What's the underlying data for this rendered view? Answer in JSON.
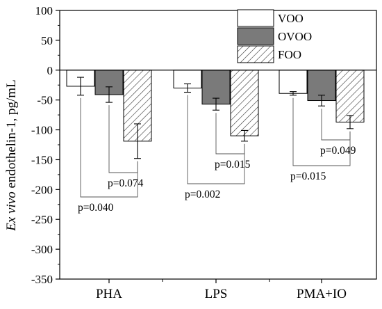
{
  "chart_data": {
    "type": "bar",
    "ylabel_prefix": "Ex vivo",
    "ylabel_rest": " endothelin-1, pg/mL",
    "ylim": [
      -350,
      100
    ],
    "yticks": [
      100,
      50,
      0,
      -50,
      -100,
      -150,
      -200,
      -250,
      -300,
      -350
    ],
    "categories": [
      "PHA",
      "LPS",
      "PMA+IO"
    ],
    "series": [
      {
        "name": "VOO",
        "values": [
          -27,
          -30,
          -39
        ],
        "errors": [
          15,
          7,
          3
        ],
        "fill": "#ffffff"
      },
      {
        "name": "OVOO",
        "values": [
          -41,
          -57,
          -51
        ],
        "errors": [
          13,
          10,
          9
        ],
        "fill": "#7a7a7a"
      },
      {
        "name": "FOO",
        "values": [
          -119,
          -110,
          -87
        ],
        "errors": [
          29,
          9,
          11
        ],
        "fill": "hatch"
      }
    ],
    "annotations": [
      {
        "category": 0,
        "from": 0,
        "to": 2,
        "label": "p=0.040"
      },
      {
        "category": 0,
        "from": 1,
        "to": 2,
        "label": "p=0.074"
      },
      {
        "category": 1,
        "from": 0,
        "to": 2,
        "label": "p=0.002"
      },
      {
        "category": 1,
        "from": 1,
        "to": 2,
        "label": "p=0.015"
      },
      {
        "category": 2,
        "from": 0,
        "to": 2,
        "label": "p=0.015"
      },
      {
        "category": 2,
        "from": 1,
        "to": 2,
        "label": "p=0.049"
      }
    ],
    "legend_position": "top-right",
    "grid": false
  }
}
